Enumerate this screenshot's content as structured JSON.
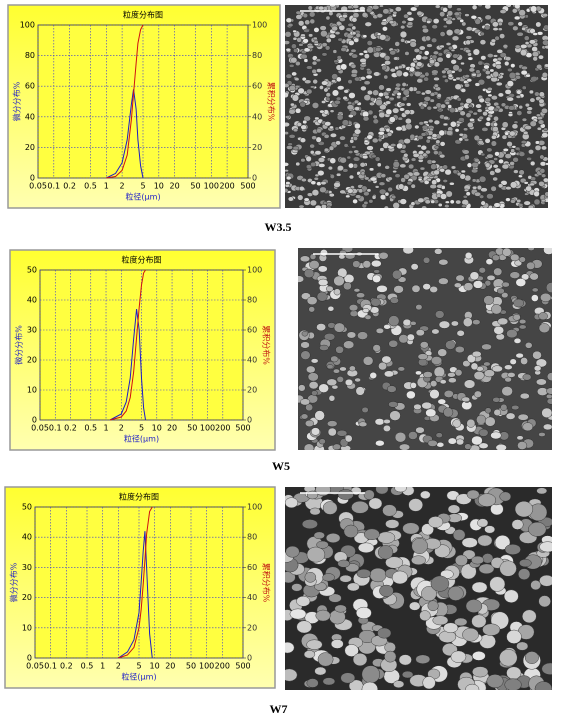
{
  "chart_data": [
    {
      "type": "line",
      "title": "粒度分布图",
      "caption": "W3.5",
      "xlabel": "粒径(μm)",
      "ylabel": "微分分布%",
      "y2label": "累积分布%",
      "xscale": "log",
      "xlim": [
        0.05,
        500
      ],
      "xticks": [
        0.05,
        0.1,
        0.2,
        0.5,
        1,
        2,
        5,
        10,
        20,
        50,
        100,
        200,
        500
      ],
      "ylim": [
        0,
        100
      ],
      "yticks": [
        0,
        20,
        40,
        60,
        80,
        100
      ],
      "y2lim": [
        0,
        100
      ],
      "y2ticks": [
        0,
        20,
        40,
        60,
        80,
        100
      ],
      "grid": true,
      "x": [
        1,
        1.5,
        2,
        2.5,
        3,
        3.3,
        3.7,
        4,
        4.5,
        5
      ],
      "series": [
        {
          "color": "#1c1cc8",
          "values": [
            0,
            3,
            10,
            25,
            48,
            58,
            45,
            25,
            8,
            0
          ]
        },
        {
          "color": "#d01010",
          "axis": "y2",
          "values": [
            0,
            1,
            5,
            15,
            38,
            55,
            75,
            88,
            97,
            100
          ]
        }
      ]
    },
    {
      "type": "line",
      "title": "粒度分布图",
      "caption": "W5",
      "xlabel": "粒径(μm)",
      "ylabel": "微分分布%",
      "y2label": "累积分布%",
      "xscale": "log",
      "xlim": [
        0.05,
        500
      ],
      "xticks": [
        0.05,
        0.1,
        0.2,
        0.5,
        1,
        2,
        5,
        10,
        20,
        50,
        100,
        200,
        500
      ],
      "ylim": [
        0,
        50
      ],
      "yticks": [
        0,
        10,
        20,
        30,
        40,
        50
      ],
      "y2lim": [
        0,
        100
      ],
      "y2ticks": [
        0,
        20,
        40,
        60,
        80,
        100
      ],
      "grid": true,
      "x": [
        1.2,
        2,
        2.5,
        3,
        3.5,
        4,
        4.5,
        5,
        5.5,
        6
      ],
      "series": [
        {
          "color": "#1c1cc8",
          "values": [
            0,
            2,
            6,
            14,
            27,
            37,
            30,
            14,
            4,
            0
          ]
        },
        {
          "color": "#d01010",
          "axis": "y2",
          "values": [
            0,
            2,
            6,
            15,
            32,
            55,
            75,
            90,
            98,
            100
          ]
        }
      ]
    },
    {
      "type": "line",
      "title": "粒度分布图",
      "caption": "W7",
      "xlabel": "粒径(μm)",
      "ylabel": "微分分布%",
      "y2label": "累积分布%",
      "xscale": "log",
      "xlim": [
        0.05,
        500
      ],
      "xticks": [
        0.05,
        0.1,
        0.2,
        0.5,
        1,
        2,
        5,
        10,
        20,
        50,
        100,
        200,
        500
      ],
      "ylim": [
        0,
        50
      ],
      "yticks": [
        0,
        10,
        20,
        30,
        40,
        50
      ],
      "y2lim": [
        0,
        100
      ],
      "y2ticks": [
        0,
        20,
        40,
        60,
        80,
        100
      ],
      "grid": true,
      "x": [
        2,
        3,
        4,
        5,
        5.5,
        6,
        6.5,
        7,
        8,
        9
      ],
      "series": [
        {
          "color": "#1c1cc8",
          "values": [
            0,
            2,
            6,
            15,
            25,
            35,
            42,
            30,
            8,
            0
          ]
        },
        {
          "color": "#d01010",
          "axis": "y2",
          "values": [
            0,
            2,
            7,
            20,
            32,
            48,
            65,
            82,
            97,
            100
          ]
        }
      ]
    }
  ]
}
